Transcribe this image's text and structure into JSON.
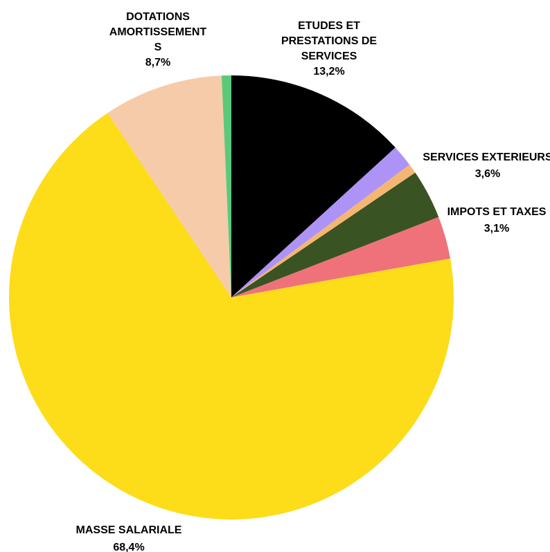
{
  "chart_data": {
    "type": "pie",
    "title": "",
    "start_angle_deg": 0,
    "direction": "clockwise",
    "slices": [
      {
        "label": "ETUDES ET PRESTATIONS DE SERVICES",
        "label_lines": [
          "ETUDES ET",
          "PRESTATIONS DE",
          "SERVICES"
        ],
        "value_label": "13,2%",
        "value": 13.2,
        "color": "#000000"
      },
      {
        "label": "",
        "label_lines": [],
        "value_label": "",
        "value": 1.6,
        "color": "#AE93F7"
      },
      {
        "label": "",
        "label_lines": [],
        "value_label": "",
        "value": 0.7,
        "color": "#F5B672"
      },
      {
        "label": "SERVICES EXTERIEURS",
        "label_lines": [
          "SERVICES EXTERIEURS"
        ],
        "value_label": "3,6%",
        "value": 3.6,
        "color": "#3A5322"
      },
      {
        "label": "IMPOTS ET TAXES",
        "label_lines": [
          "IMPOTS ET TAXES"
        ],
        "value_label": "3,1%",
        "value": 3.1,
        "color": "#EF727B"
      },
      {
        "label": "MASSE SALARIALE",
        "label_lines": [
          "MASSE SALARIALE"
        ],
        "value_label": "68,4%",
        "value": 68.4,
        "color": "#FDDC19"
      },
      {
        "label": "DOTATIONS AMORTISSEMENTS",
        "label_lines": [
          "DOTATIONS",
          "AMORTISSEMENT",
          "S"
        ],
        "value_label": "8,7%",
        "value": 8.7,
        "color": "#F6CBA9"
      },
      {
        "label": "",
        "label_lines": [],
        "value_label": "",
        "value": 0.7,
        "color": "#5CC97A"
      }
    ]
  }
}
